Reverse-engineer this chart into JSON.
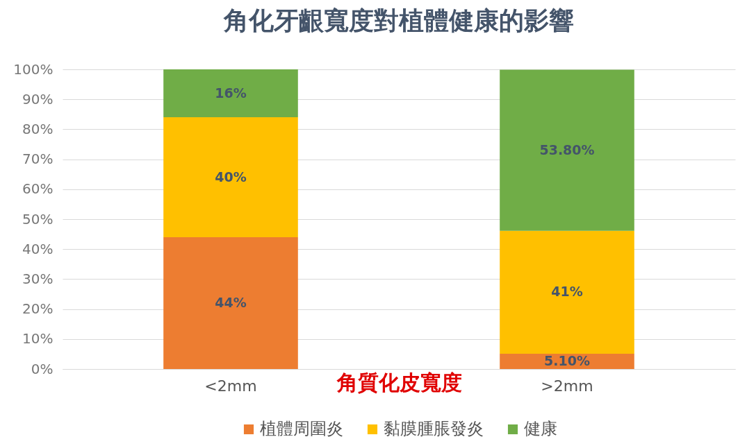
{
  "chart_data": {
    "type": "bar",
    "title": "角化牙齦寬度對植體健康的影響",
    "xlabel": "角質化皮寬度",
    "categories": [
      "<2mm",
      ">2mm"
    ],
    "stacked": true,
    "series": [
      {
        "name": "植體周圍炎",
        "color": "#ed7d31",
        "values": [
          44,
          5.1
        ],
        "value_labels": [
          "44%",
          "5.10%"
        ]
      },
      {
        "name": "黏膜腫脹發炎",
        "color": "#ffc000",
        "values": [
          40,
          41
        ],
        "value_labels": [
          "40%",
          "41%"
        ]
      },
      {
        "name": "健康",
        "color": "#70ad47",
        "values": [
          16,
          53.8
        ],
        "value_labels": [
          "16%",
          "53.80%"
        ]
      }
    ],
    "ylim": [
      0,
      100
    ],
    "yticks": [
      {
        "value": 0,
        "label": "0%"
      },
      {
        "value": 10,
        "label": "10%"
      },
      {
        "value": 20,
        "label": "20%"
      },
      {
        "value": 30,
        "label": "30%"
      },
      {
        "value": 40,
        "label": "40%"
      },
      {
        "value": 50,
        "label": "50%"
      },
      {
        "value": 60,
        "label": "60%"
      },
      {
        "value": 70,
        "label": "70%"
      },
      {
        "value": 80,
        "label": "80%"
      },
      {
        "value": 90,
        "label": "90%"
      },
      {
        "value": 100,
        "label": "100%"
      }
    ],
    "grid": "y",
    "legend": "bottom"
  }
}
